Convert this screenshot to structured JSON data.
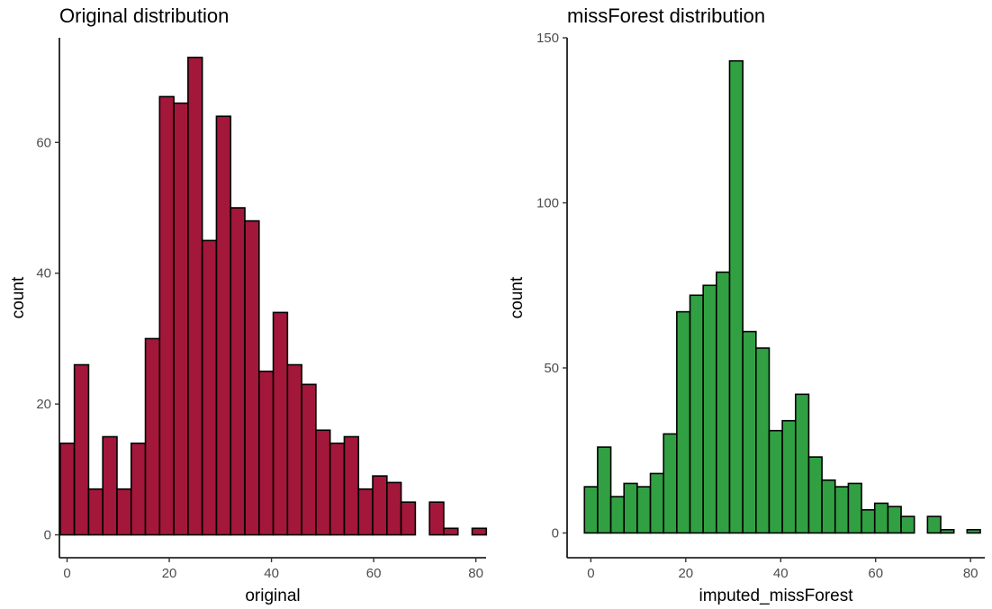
{
  "chart_data": [
    {
      "id": "left",
      "type": "bar",
      "title": "Original distribution",
      "xlabel": "original",
      "ylabel": "count",
      "xlim": [
        -1.5,
        82
      ],
      "ylim": [
        -3.5,
        76
      ],
      "xticks": [
        "0",
        "20",
        "40",
        "60",
        "80"
      ],
      "yticks": [
        "0",
        "20",
        "40",
        "60"
      ],
      "xtick_values": [
        0,
        20,
        40,
        60,
        80
      ],
      "ytick_values": [
        0,
        20,
        40,
        60
      ],
      "fill": "#A3173A",
      "bin_start": -1.35,
      "bin_width": 2.78,
      "values": [
        14,
        26,
        7,
        15,
        7,
        14,
        30,
        67,
        66,
        73,
        45,
        64,
        50,
        48,
        25,
        34,
        26,
        23,
        16,
        14,
        15,
        7,
        9,
        8,
        5,
        0,
        5,
        1,
        0,
        1
      ]
    },
    {
      "id": "right",
      "type": "bar",
      "title": "missForest distribution",
      "xlabel": "imputed_missForest",
      "ylabel": "count",
      "xlim": [
        -5,
        83
      ],
      "ylim": [
        -7.5,
        150
      ],
      "xticks": [
        "0",
        "20",
        "40",
        "60",
        "80"
      ],
      "yticks": [
        "0",
        "50",
        "100",
        "150"
      ],
      "xtick_values": [
        0,
        20,
        40,
        60,
        80
      ],
      "ytick_values": [
        0,
        50,
        100,
        150
      ],
      "fill": "#31A043",
      "bin_start": -1.35,
      "bin_width": 2.78,
      "values": [
        14,
        26,
        11,
        15,
        14,
        18,
        30,
        67,
        72,
        75,
        79,
        143,
        61,
        56,
        31,
        34,
        42,
        23,
        16,
        14,
        15,
        7,
        9,
        8,
        5,
        0,
        5,
        1,
        0,
        1
      ]
    }
  ]
}
